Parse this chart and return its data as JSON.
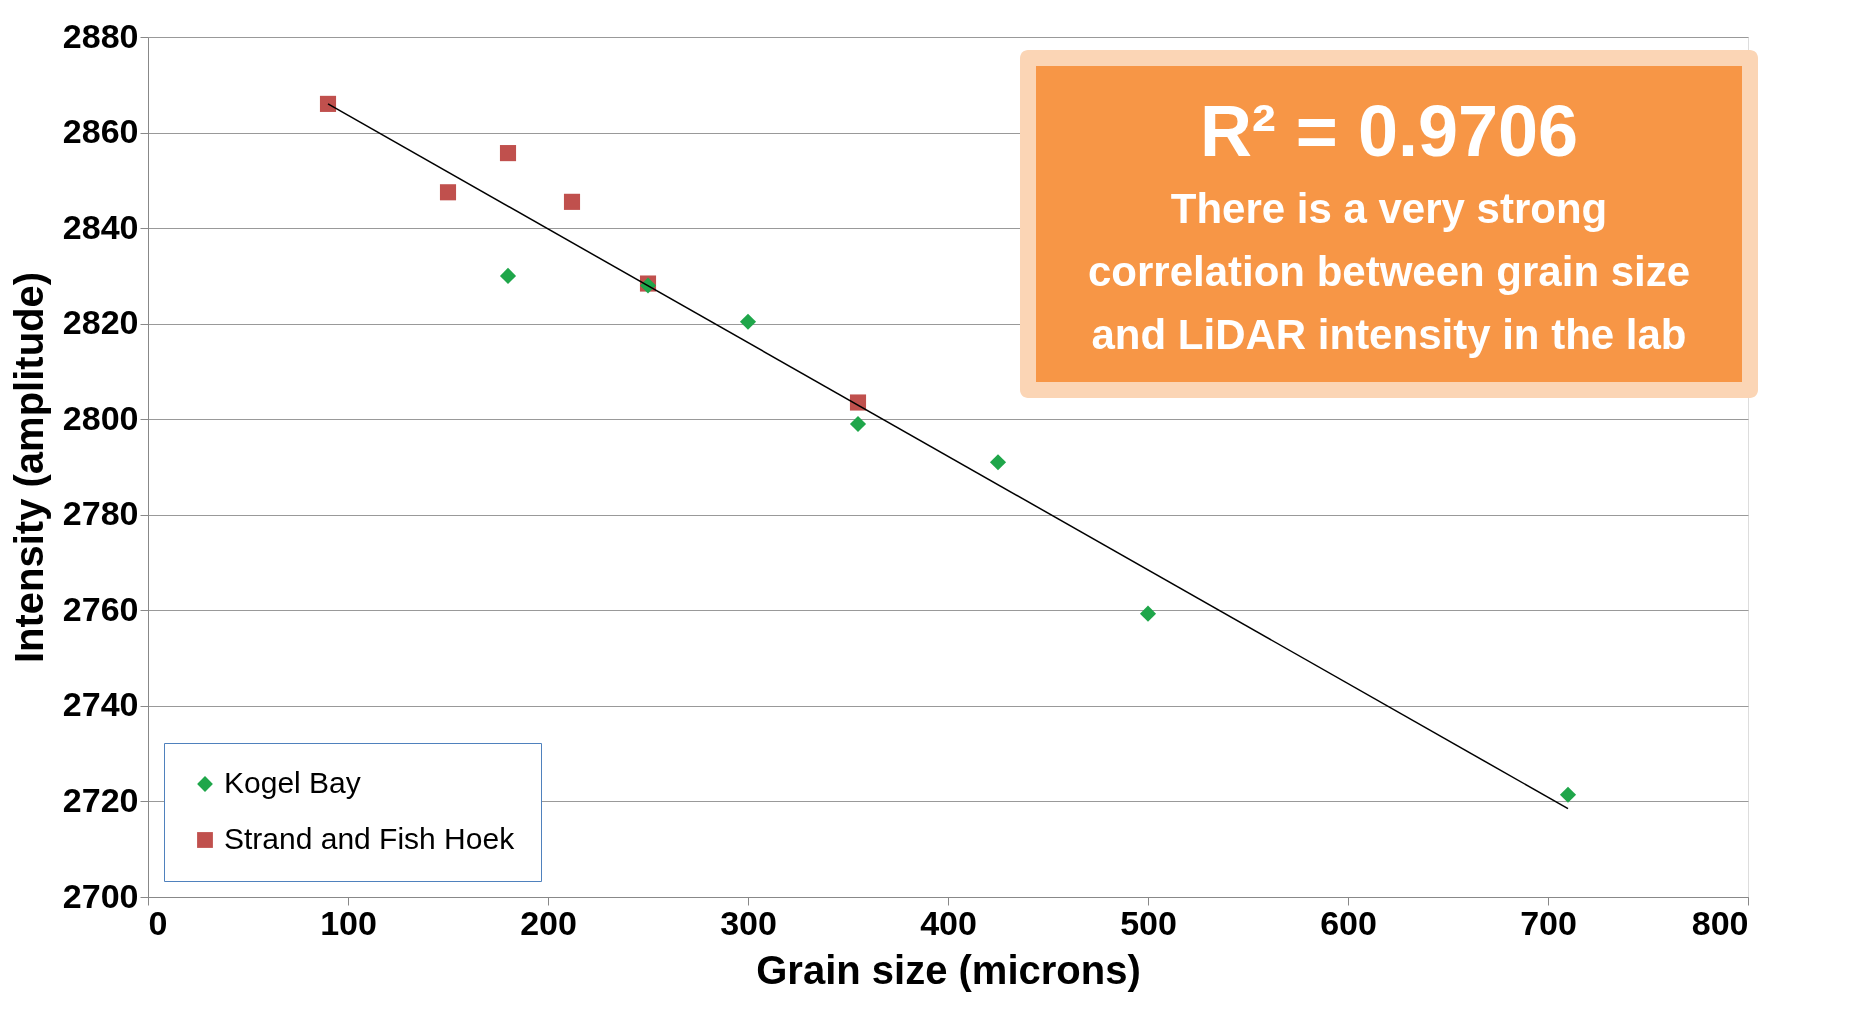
{
  "chart_data": {
    "type": "scatter",
    "xlabel": "Grain size (microns)",
    "ylabel": "Intensity (amplitude)",
    "xlim": [
      0,
      800
    ],
    "xticks": [
      0,
      100,
      200,
      300,
      400,
      500,
      600,
      700,
      800
    ],
    "ylim": [
      2700,
      2880
    ],
    "yticks": [
      2700,
      2720,
      2740,
      2760,
      2780,
      2800,
      2820,
      2840,
      2860,
      2880
    ],
    "grid": "y",
    "legend": "bottom left",
    "series": [
      {
        "name": "Kogel Bay",
        "color": "#1fa64a",
        "marker": "diamond",
        "x": [
          180,
          250,
          300,
          355,
          425,
          500,
          710
        ],
        "values": [
          2830,
          2828,
          2820.4,
          2799,
          2791,
          2759.3,
          2721.4
        ]
      },
      {
        "name": "Strand and Fish Hoek",
        "color": "#c0504d",
        "marker": "square",
        "x": [
          90,
          150,
          180,
          212,
          250,
          355
        ],
        "values": [
          2866,
          2847.5,
          2855.7,
          2845.5,
          2828.4,
          2803.5
        ]
      },
      {
        "type": "line",
        "color": "#000000",
        "x": [
          90,
          710
        ],
        "values": [
          2866,
          2718.5
        ]
      }
    ],
    "annotations": [
      "R² = 0.9706",
      "There is a very strong correlation between grain size and LiDAR intensity in the lab"
    ]
  }
}
